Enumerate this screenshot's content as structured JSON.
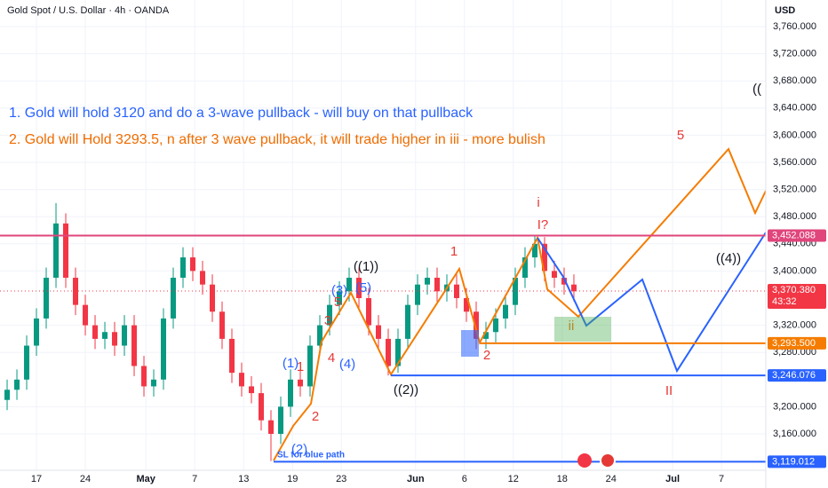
{
  "chart_data": {
    "type": "candlestick",
    "title": "Gold Spot / U.S. Dollar · 4h · OANDA",
    "currency": "USD",
    "notes": [
      {
        "text": "1. Gold will hold 3120 and do a 3-wave pullback - will buy on that pullback",
        "color": "#2962ff"
      },
      {
        "text": "2. Gold will Hold 3293.5, n after 3 wave pullback, it will trade higher in iii  - more bulish",
        "color": "#ef6c00"
      }
    ],
    "up_color": "#089981",
    "down_color": "#f23645",
    "x": [
      -3,
      -2,
      -1,
      0,
      1,
      2,
      3,
      4,
      5,
      6,
      7,
      8,
      9,
      10,
      11,
      12,
      13,
      14,
      15,
      16,
      17,
      18,
      19,
      20,
      21,
      22,
      23,
      24,
      25,
      26,
      27,
      28,
      29,
      30,
      31,
      32,
      33,
      34,
      35,
      36,
      37,
      38,
      39,
      40,
      41,
      42,
      43,
      44,
      45,
      46,
      47,
      48,
      49,
      50,
      51,
      52,
      53,
      54,
      55
    ],
    "open": [
      3210,
      3225,
      3240,
      3290,
      3330,
      3390,
      3470,
      3390,
      3350,
      3320,
      3300,
      3310,
      3290,
      3320,
      3260,
      3230,
      3240,
      3330,
      3390,
      3420,
      3400,
      3380,
      3340,
      3300,
      3250,
      3230,
      3220,
      3180,
      3160,
      3200,
      3240,
      3230,
      3290,
      3320,
      3350,
      3370,
      3390,
      3360,
      3320,
      3300,
      3260,
      3300,
      3350,
      3380,
      3390,
      3370,
      3380,
      3360,
      3340,
      3300,
      3310,
      3330,
      3350,
      3390,
      3420,
      3440,
      3400,
      3390,
      3380
    ],
    "high": [
      3240,
      3255,
      3305,
      3345,
      3405,
      3500,
      3485,
      3405,
      3365,
      3335,
      3325,
      3325,
      3335,
      3335,
      3275,
      3255,
      3345,
      3405,
      3435,
      3435,
      3415,
      3395,
      3355,
      3315,
      3265,
      3245,
      3235,
      3195,
      3215,
      3255,
      3255,
      3305,
      3335,
      3365,
      3385,
      3405,
      3405,
      3375,
      3335,
      3315,
      3315,
      3365,
      3395,
      3405,
      3405,
      3395,
      3395,
      3375,
      3355,
      3325,
      3345,
      3365,
      3405,
      3435,
      3452,
      3450,
      3415,
      3405,
      3395
    ],
    "low": [
      3195,
      3210,
      3225,
      3275,
      3315,
      3375,
      3375,
      3335,
      3305,
      3285,
      3285,
      3275,
      3275,
      3245,
      3215,
      3215,
      3225,
      3315,
      3375,
      3385,
      3365,
      3325,
      3285,
      3235,
      3215,
      3205,
      3165,
      3120,
      3145,
      3185,
      3215,
      3215,
      3275,
      3305,
      3335,
      3355,
      3345,
      3305,
      3285,
      3246,
      3250,
      3285,
      3335,
      3365,
      3355,
      3355,
      3345,
      3325,
      3285,
      3285,
      3295,
      3315,
      3335,
      3375,
      3405,
      3385,
      3375,
      3365,
      3355
    ],
    "close": [
      3225,
      3240,
      3290,
      3330,
      3390,
      3470,
      3390,
      3350,
      3320,
      3300,
      3310,
      3290,
      3320,
      3260,
      3230,
      3240,
      3330,
      3390,
      3420,
      3400,
      3380,
      3340,
      3300,
      3250,
      3230,
      3220,
      3180,
      3160,
      3200,
      3240,
      3230,
      3290,
      3320,
      3350,
      3370,
      3390,
      3360,
      3320,
      3300,
      3260,
      3300,
      3350,
      3380,
      3390,
      3370,
      3380,
      3360,
      3340,
      3300,
      3310,
      3330,
      3350,
      3390,
      3420,
      3440,
      3400,
      3390,
      3380,
      3370
    ],
    "xlim": [
      -3.73,
      74.64
    ],
    "xticks": [
      {
        "value": 0,
        "label": "17"
      },
      {
        "value": 5,
        "label": "24"
      },
      {
        "value": 11.2,
        "label": "May"
      },
      {
        "value": 16.2,
        "label": "7"
      },
      {
        "value": 21.2,
        "label": "13"
      },
      {
        "value": 26.2,
        "label": "19"
      },
      {
        "value": 31.2,
        "label": "23"
      },
      {
        "value": 38.8,
        "label": "Jun"
      },
      {
        "value": 43.8,
        "label": "6"
      },
      {
        "value": 48.8,
        "label": "12"
      },
      {
        "value": 53.8,
        "label": "18"
      },
      {
        "value": 58.8,
        "label": "24"
      },
      {
        "value": 65.1,
        "label": "Jul"
      },
      {
        "value": 70.1,
        "label": "7"
      }
    ],
    "ylim": [
      3106.4,
      3799.2
    ],
    "yticks": [
      {
        "value": 3760,
        "label": "3,760.000"
      },
      {
        "value": 3720,
        "label": "3,720.000"
      },
      {
        "value": 3680,
        "label": "3,680.000"
      },
      {
        "value": 3640,
        "label": "3,640.000"
      },
      {
        "value": 3600,
        "label": "3,600.000"
      },
      {
        "value": 3560,
        "label": "3,560.000"
      },
      {
        "value": 3520,
        "label": "3,520.000"
      },
      {
        "value": 3480,
        "label": "3,480.000"
      },
      {
        "value": 3440,
        "label": "3,440.000"
      },
      {
        "value": 3400,
        "label": "3,400.000"
      },
      {
        "value": 3320,
        "label": "3,320.000"
      },
      {
        "value": 3280,
        "label": "3,280.000"
      },
      {
        "value": 3200,
        "label": "3,200.000"
      },
      {
        "value": 3160,
        "label": "3,160.000"
      }
    ],
    "levels": [
      {
        "value": 3452.088,
        "label": "3,452.088",
        "color": "#e0457b"
      },
      {
        "value": 3293.5,
        "label": "3,293.500",
        "color": "#f57c00"
      },
      {
        "value": 3246.076,
        "label": "3,246.076",
        "color": "#2962ff"
      },
      {
        "value": 3119.012,
        "label": "3,119.012",
        "color": "#2962ff"
      }
    ],
    "last_price": {
      "value": 3370.38,
      "label": "3,370.380",
      "countdown": "43:32",
      "color": "#f23645"
    },
    "sl_label": "SL for blue path",
    "annotations": [
      {
        "text": "5",
        "color": "#e53935"
      },
      {
        "text": "3",
        "color": "#e53935"
      },
      {
        "text": "4",
        "color": "#e53935"
      },
      {
        "text": "1",
        "color": "#e53935"
      },
      {
        "text": "2",
        "color": "#e53935"
      },
      {
        "text": "1",
        "color": "#e53935"
      },
      {
        "text": "2",
        "color": "#e53935"
      },
      {
        "text": "i",
        "color": "#e53935"
      },
      {
        "text": "I?",
        "color": "#e53935"
      },
      {
        "text": "ii",
        "color": "#b5892a"
      },
      {
        "text": "II",
        "color": "#e53935"
      },
      {
        "text": "5",
        "color": "#e53935"
      },
      {
        "text": "(1)",
        "color": "#2962ff"
      },
      {
        "text": "(3)",
        "color": "#2962ff"
      },
      {
        "text": "(5)",
        "color": "#2962ff"
      },
      {
        "text": "(4)",
        "color": "#2962ff"
      },
      {
        "text": "(2)",
        "color": "#2962ff"
      },
      {
        "text": "((1))",
        "color": "#131722"
      },
      {
        "text": "((2))",
        "color": "#131722"
      },
      {
        "text": "((4))",
        "color": "#131722"
      },
      {
        "text": "((",
        "color": "#131722"
      }
    ]
  }
}
